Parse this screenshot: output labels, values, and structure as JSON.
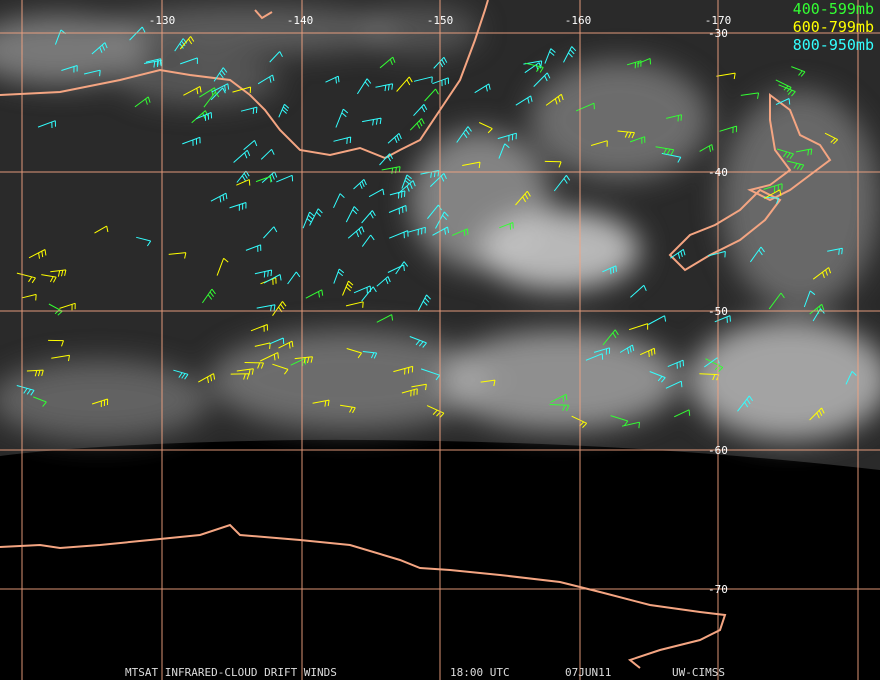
{
  "grid": {
    "lon_labels": [
      "-130",
      "-140",
      "-150",
      "-160",
      "-170"
    ],
    "lat_labels": [
      "-30",
      "-40",
      "-50",
      "-60",
      "-70"
    ]
  },
  "legend": [
    {
      "label": "400-599mb",
      "color": "#33ff33"
    },
    {
      "label": "600-799mb",
      "color": "#ffff00"
    },
    {
      "label": "800-950mb",
      "color": "#33ffff"
    }
  ],
  "footer": {
    "product": "MTSAT INFRARED-CLOUD DRIFT WINDS",
    "time": "18:00 UTC",
    "date": "07JUN11",
    "source": "UW-CIMSS"
  }
}
